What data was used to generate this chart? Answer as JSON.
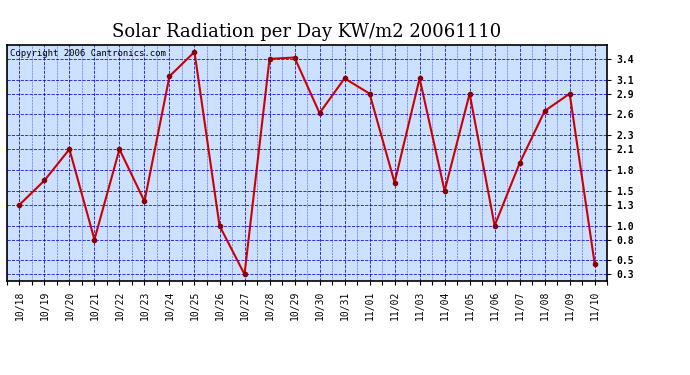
{
  "title": "Solar Radiation per Day KW/m2 20061110",
  "copyright_text": "Copyright 2006 Cantronics.com",
  "x_labels": [
    "10/18",
    "10/19",
    "10/20",
    "10/21",
    "10/22",
    "10/23",
    "10/24",
    "10/25",
    "10/26",
    "10/27",
    "10/28",
    "10/29",
    "10/30",
    "10/31",
    "11/01",
    "11/02",
    "11/03",
    "11/04",
    "11/05",
    "11/06",
    "11/07",
    "11/08",
    "11/09",
    "11/10"
  ],
  "y_values": [
    1.3,
    1.65,
    2.1,
    0.8,
    2.1,
    1.35,
    3.15,
    3.5,
    1.0,
    0.3,
    3.4,
    3.42,
    2.62,
    3.12,
    2.9,
    1.62,
    3.12,
    1.5,
    2.9,
    1.0,
    1.9,
    2.65,
    2.9,
    0.45
  ],
  "line_color": "#cc0000",
  "marker_color": "#880000",
  "bg_color": "#cce0ff",
  "fig_bg_color": "#ffffff",
  "grid_color": "#0000cc",
  "border_color": "#000000",
  "title_fontsize": 13,
  "copyright_fontsize": 6.5,
  "ylim": [
    0.2,
    3.6
  ],
  "yticks": [
    0.3,
    0.5,
    0.8,
    1.0,
    1.3,
    1.5,
    1.8,
    2.1,
    2.3,
    2.6,
    2.9,
    3.1,
    3.4
  ],
  "marker_size": 3,
  "line_width": 1.5
}
